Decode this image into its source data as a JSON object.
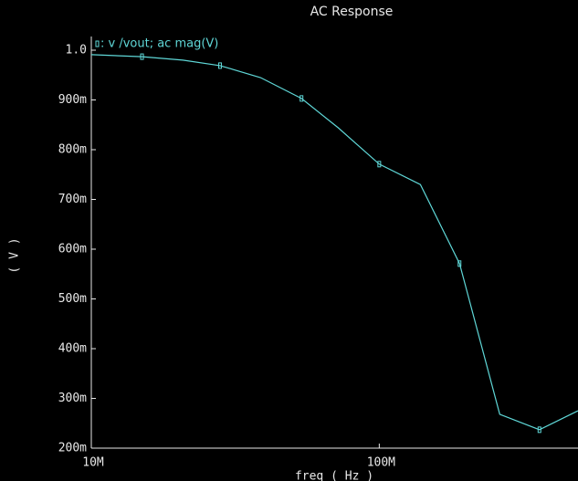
{
  "chart_data": {
    "type": "line",
    "title": "AC Response",
    "x_label": "freq ( Hz )",
    "y_label": "( V )",
    "x_log": true,
    "x": [
      10000000,
      15000000,
      20800000,
      28000000,
      38700000,
      53700000,
      72000000,
      100000000,
      139000000,
      190000000,
      262000000,
      360000000,
      490000000
    ],
    "series": [
      {
        "name": ": v /vout; ac mag(V)",
        "color": "#5fd7d7",
        "values": [
          0.991,
          0.987,
          0.98,
          0.969,
          0.945,
          0.903,
          0.844,
          0.771,
          0.73,
          0.571,
          0.268,
          0.237,
          0.275
        ]
      }
    ],
    "xlim": [
      10000000,
      490000000
    ],
    "xticks": [
      {
        "value": 10000000,
        "label": "10M"
      },
      {
        "value": 100000000,
        "label": "100M"
      }
    ],
    "ylim": [
      0.2,
      1.0
    ],
    "yticks": [
      {
        "value": 1.0,
        "label": "1.0"
      },
      {
        "value": 0.9,
        "label": "900m"
      },
      {
        "value": 0.8,
        "label": "800m"
      },
      {
        "value": 0.7,
        "label": "700m"
      },
      {
        "value": 0.6,
        "label": "600m"
      },
      {
        "value": 0.5,
        "label": "500m"
      },
      {
        "value": 0.4,
        "label": "400m"
      },
      {
        "value": 0.3,
        "label": "300m"
      },
      {
        "value": 0.2,
        "label": "200m"
      }
    ]
  }
}
